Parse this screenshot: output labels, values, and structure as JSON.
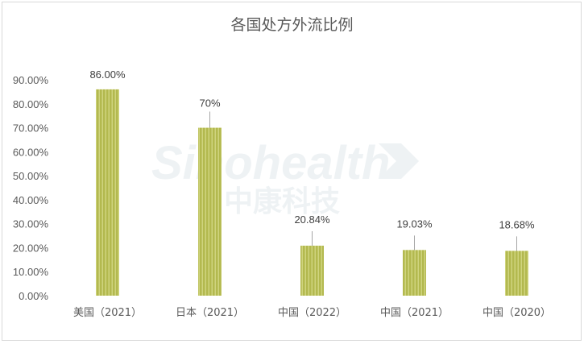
{
  "chart_data": {
    "type": "bar",
    "title": "各国处方外流比例",
    "categories": [
      "美国（2021）",
      "日本（2021）",
      "中国（2022）",
      "中国（2021）",
      "中国（2020）"
    ],
    "values": [
      0.86,
      0.7,
      0.2084,
      0.1903,
      0.1868
    ],
    "data_labels": [
      "86.00%",
      "70%",
      "20.84%",
      "19.03%",
      "18.68%"
    ],
    "y_ticks": [
      "0.00%",
      "10.00%",
      "20.00%",
      "30.00%",
      "40.00%",
      "50.00%",
      "60.00%",
      "70.00%",
      "80.00%",
      "90.00%"
    ],
    "ylim": [
      0,
      0.9
    ],
    "grid": false,
    "bar_color": "#b3b94f",
    "bar_stripe_color": "#d6db8a"
  },
  "watermark": {
    "line1": "Sinohealth",
    "line2": "中康科技"
  }
}
